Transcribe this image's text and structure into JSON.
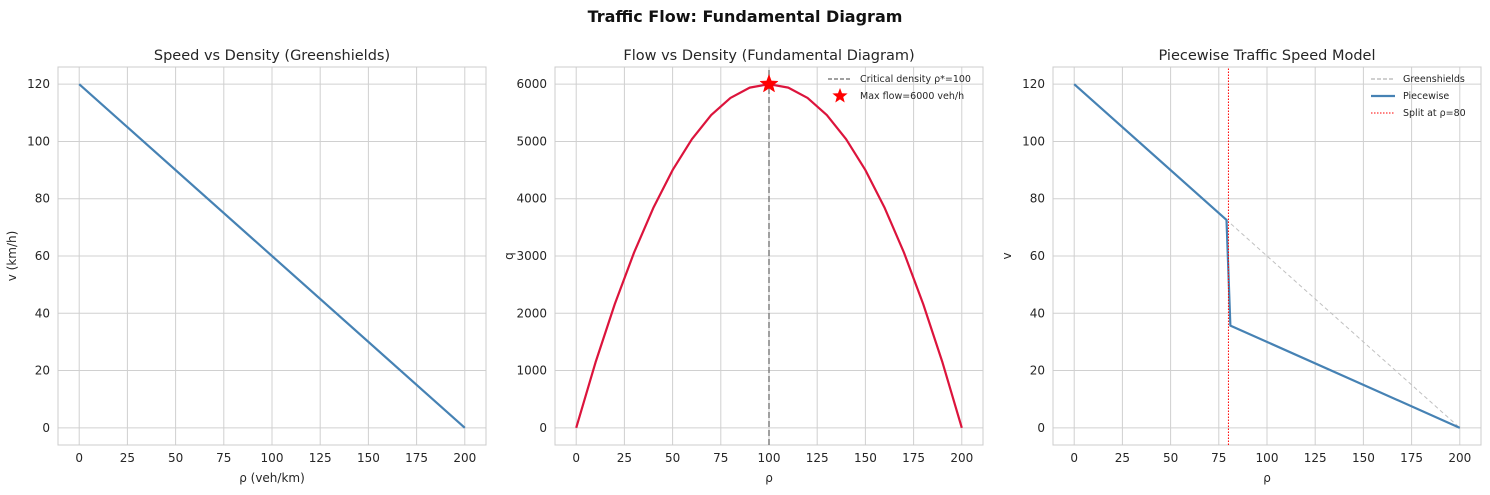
{
  "figure": {
    "title": "Traffic Flow: Fundamental Diagram"
  },
  "colors": {
    "blue": "#4682b4",
    "crimson": "#dc143c",
    "red": "#ff0000",
    "gray": "#808080",
    "lightgray": "#c0c0c0",
    "grid": "#d0d0d0",
    "frame": "#cccccc"
  },
  "chart_data": [
    {
      "type": "line",
      "title": "Speed vs Density (Greenshields)",
      "xlabel": "ρ (veh/km)",
      "ylabel": "v (km/h)",
      "xlim": [
        -11,
        211
      ],
      "ylim": [
        -6,
        126
      ],
      "xticks": [
        0,
        25,
        50,
        75,
        100,
        125,
        150,
        175,
        200
      ],
      "yticks": [
        0,
        20,
        40,
        60,
        80,
        100,
        120
      ],
      "grid": true,
      "series": [
        {
          "x": [
            0,
            200
          ],
          "y": [
            120,
            0
          ],
          "color": "#4682b4"
        }
      ]
    },
    {
      "type": "line",
      "title": "Flow vs Density (Fundamental Diagram)",
      "xlabel": "ρ",
      "ylabel": "q",
      "xlim": [
        -11,
        211
      ],
      "ylim": [
        -300,
        6300
      ],
      "xticks": [
        0,
        25,
        50,
        75,
        100,
        125,
        150,
        175,
        200
      ],
      "yticks": [
        0,
        1000,
        2000,
        3000,
        4000,
        5000,
        6000
      ],
      "grid": true,
      "legend": "top-right",
      "series": [
        {
          "x": [
            0,
            10,
            20,
            30,
            40,
            50,
            60,
            70,
            80,
            90,
            100,
            110,
            120,
            130,
            140,
            150,
            160,
            170,
            180,
            190,
            200
          ],
          "y": [
            0,
            1140,
            2160,
            3060,
            3840,
            4500,
            5040,
            5460,
            5760,
            5940,
            6000,
            5940,
            5760,
            5460,
            5040,
            4500,
            3840,
            3060,
            2160,
            1140,
            0
          ],
          "color": "#dc143c"
        },
        {
          "name": "Critical density ρ*=100",
          "x": [
            100,
            100
          ],
          "y": [
            -300,
            6300
          ],
          "color": "#808080",
          "dashed": true
        },
        {
          "name": "Max flow=6000 veh/h",
          "x": [
            100
          ],
          "y": [
            6000
          ],
          "color": "#ff0000",
          "marker": "star"
        }
      ]
    },
    {
      "type": "line",
      "title": "Piecewise Traffic Speed Model",
      "xlabel": "ρ",
      "ylabel": "v",
      "xlim": [
        -11,
        211
      ],
      "ylim": [
        -6,
        126
      ],
      "xticks": [
        0,
        25,
        50,
        75,
        100,
        125,
        150,
        175,
        200
      ],
      "yticks": [
        0,
        20,
        40,
        60,
        80,
        100,
        120
      ],
      "grid": true,
      "legend": "top-right",
      "series": [
        {
          "name": "Greenshields",
          "x": [
            0,
            200
          ],
          "y": [
            120,
            0
          ],
          "color": "#c0c0c0",
          "dashed": true
        },
        {
          "name": "Piecewise",
          "x": [
            0,
            79,
            81,
            200
          ],
          "y": [
            120,
            72.6,
            35.7,
            0
          ],
          "color": "#4682b4"
        },
        {
          "name": "Split at ρ=80",
          "x": [
            80,
            80
          ],
          "y": [
            -6,
            126
          ],
          "color": "#ff0000",
          "dotted": true
        }
      ]
    }
  ]
}
